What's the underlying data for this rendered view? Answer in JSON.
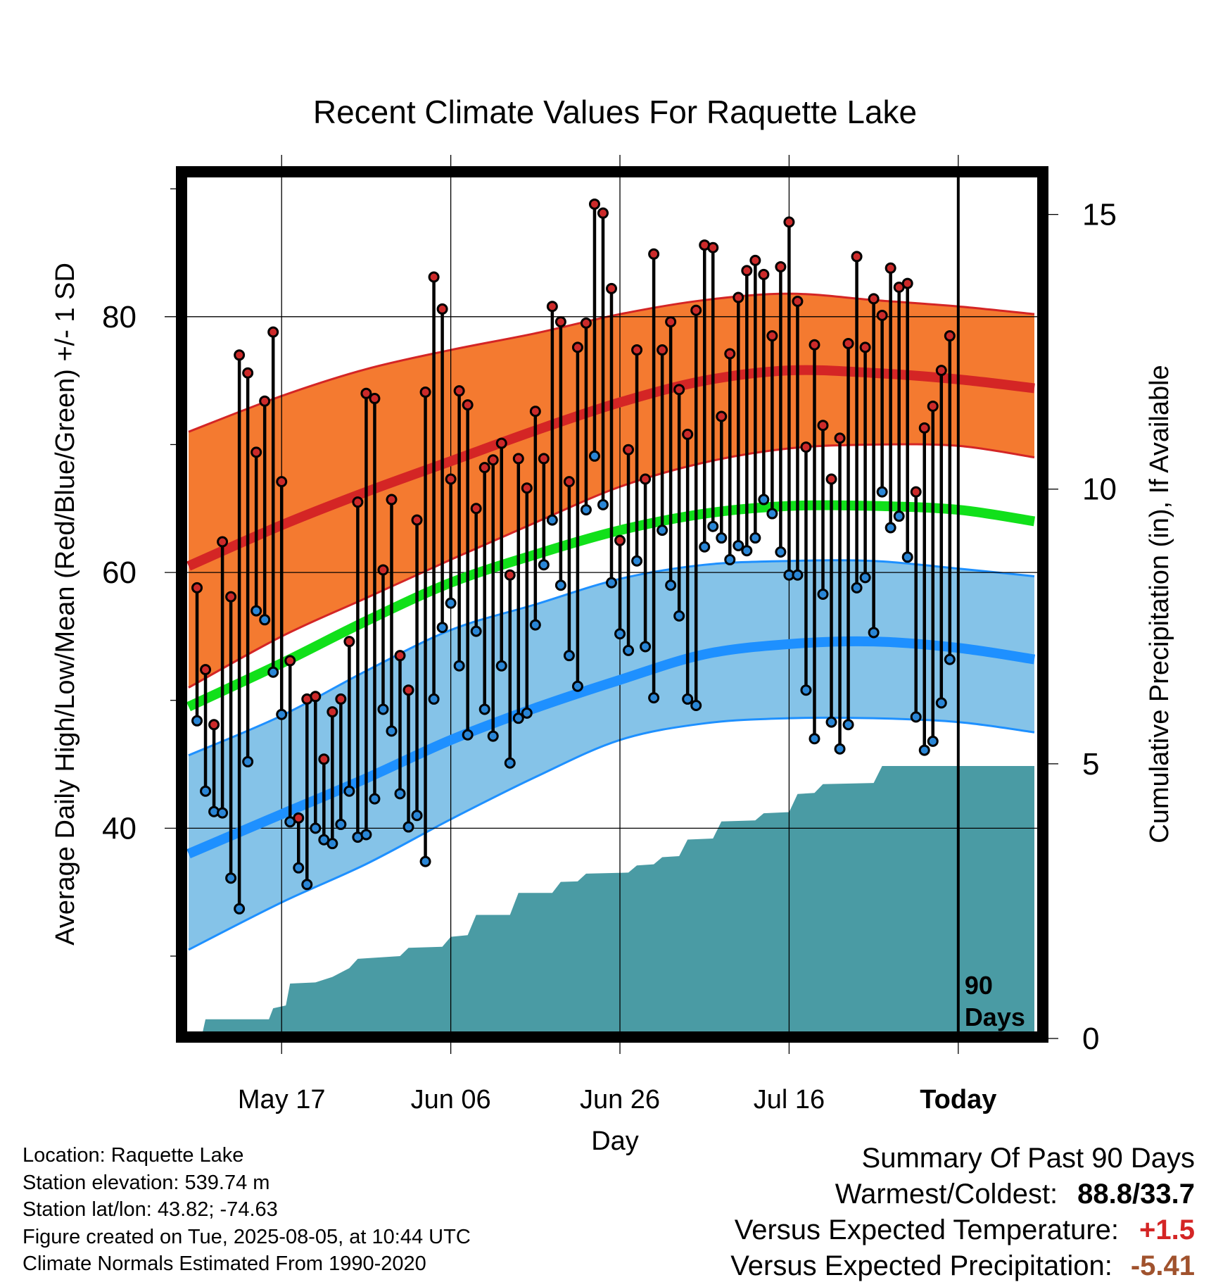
{
  "chart_data": {
    "type": "line",
    "title": "Recent Climate Values For Raquette Lake",
    "xlabel": "Day",
    "ylabel": "Average Daily High/Low/Mean (Red/Blue/Green) +/- 1 SD",
    "y2label": "Cumulative Precipitation (in), If Available",
    "x_tick_labels": [
      "May 17",
      "Jun 06",
      "Jun 26",
      "Jul 16",
      "Today"
    ],
    "x_tick_days": [
      11,
      31,
      51,
      71,
      91
    ],
    "x_range": [
      0,
      100
    ],
    "ylim": [
      24,
      91
    ],
    "y_ticks": [
      40,
      60,
      80
    ],
    "y_minor_ticks": [
      30,
      50,
      70,
      90
    ],
    "y2lim": [
      0,
      15.7
    ],
    "y2_ticks": [
      0,
      5,
      10,
      15
    ],
    "grid": true,
    "today_marker_label": [
      "90",
      "Days"
    ],
    "colors": {
      "high_band": "#f47a30",
      "high_line": "#d42525",
      "low_band": "#85c3e8",
      "low_line": "#1e90ff",
      "mean_line": "#11e01a",
      "precip": "#4a9ba4",
      "high_dot": "#cc2a2a",
      "low_dot": "#2a86d6"
    },
    "normals": {
      "x": [
        0,
        11,
        21,
        31,
        41,
        51,
        61,
        71,
        81,
        91,
        100
      ],
      "high_mean": [
        60.5,
        63.7,
        66.3,
        68.7,
        71.1,
        73.3,
        75.0,
        75.8,
        75.6,
        75.1,
        74.4
      ],
      "high_upper": [
        71.0,
        73.8,
        75.9,
        77.4,
        78.7,
        80.2,
        81.3,
        81.8,
        81.3,
        80.8,
        80.2
      ],
      "high_lower": [
        51.0,
        55.0,
        58.0,
        61.0,
        63.9,
        66.7,
        68.6,
        69.7,
        70.0,
        69.9,
        69.0
      ],
      "mean": [
        49.5,
        52.9,
        56.2,
        59.2,
        61.4,
        63.3,
        64.6,
        65.2,
        65.2,
        64.9,
        64.0
      ],
      "low_mean": [
        38.0,
        41.1,
        43.9,
        46.9,
        49.4,
        51.6,
        53.6,
        54.4,
        54.6,
        54.1,
        53.2
      ],
      "low_upper": [
        45.7,
        48.8,
        52.3,
        55.5,
        57.5,
        59.5,
        60.6,
        60.9,
        60.9,
        60.3,
        59.7
      ],
      "low_lower": [
        30.5,
        34.2,
        37.2,
        40.7,
        44.0,
        46.9,
        48.2,
        48.6,
        48.6,
        48.3,
        47.5
      ]
    },
    "series": [
      {
        "name": "High",
        "values": [
          58.8,
          52.4,
          48.1,
          62.4,
          58.1,
          77.0,
          75.6,
          69.4,
          73.4,
          78.8,
          67.1,
          53.1,
          40.8,
          50.1,
          50.3,
          45.4,
          49.1,
          50.1,
          54.6,
          65.5,
          74.0,
          73.6,
          60.2,
          65.7,
          53.5,
          50.8,
          64.1,
          74.1,
          83.1,
          80.6,
          67.3,
          74.2,
          73.1,
          65.0,
          68.2,
          68.8,
          70.1,
          59.8,
          68.9,
          66.6,
          72.6,
          68.9,
          80.8,
          79.6,
          67.1,
          77.6,
          79.5,
          88.8,
          88.1,
          82.2,
          62.5,
          69.6,
          77.4,
          67.3,
          84.9,
          77.4,
          79.6,
          74.3,
          70.8,
          80.5,
          85.6,
          85.4,
          72.2,
          77.1,
          81.5,
          83.6,
          84.4,
          83.3,
          78.5,
          83.9,
          87.4,
          81.2,
          69.8,
          77.8,
          71.5,
          67.3,
          70.5,
          77.9,
          84.7,
          77.6,
          81.4,
          80.1,
          83.8,
          82.3,
          82.6,
          66.3,
          71.3,
          73.0,
          75.8,
          78.5
        ]
      },
      {
        "name": "Low",
        "values": [
          48.4,
          42.9,
          41.3,
          41.2,
          36.1,
          33.7,
          45.2,
          57.0,
          56.3,
          52.2,
          48.9,
          40.5,
          36.9,
          35.6,
          40.0,
          39.1,
          38.8,
          40.3,
          42.9,
          39.3,
          39.5,
          42.3,
          49.3,
          47.6,
          42.7,
          40.1,
          41.0,
          37.4,
          50.1,
          55.7,
          57.6,
          52.7,
          47.3,
          55.4,
          49.3,
          47.2,
          52.7,
          45.1,
          48.6,
          49.0,
          55.9,
          60.6,
          64.1,
          59.0,
          53.5,
          51.1,
          64.9,
          69.1,
          65.3,
          59.2,
          55.2,
          53.9,
          60.9,
          54.2,
          50.2,
          63.3,
          59.0,
          56.6,
          50.1,
          49.6,
          62.0,
          63.6,
          62.7,
          61.0,
          62.1,
          61.7,
          62.7,
          65.7,
          64.6,
          61.6,
          59.8,
          59.8,
          50.8,
          47.0,
          58.3,
          48.3,
          46.2,
          48.1,
          58.8,
          59.6,
          55.3,
          66.3,
          63.5,
          64.4,
          61.2,
          48.7,
          46.1,
          46.8,
          49.8,
          53.2
        ]
      }
    ],
    "precip": {
      "x": [
        0,
        1.5,
        2,
        9.5,
        10,
        11.5,
        12,
        15,
        17,
        19,
        20,
        25,
        26,
        30,
        31,
        33,
        34,
        38,
        39,
        43,
        44,
        46,
        47,
        52,
        53,
        55,
        56,
        58,
        59,
        62,
        63,
        67,
        68,
        71,
        72,
        74,
        75,
        81,
        82,
        100
      ],
      "values": [
        0,
        0,
        0.35,
        0.35,
        0.55,
        0.6,
        1.0,
        1.02,
        1.12,
        1.28,
        1.45,
        1.5,
        1.65,
        1.67,
        1.85,
        1.88,
        2.25,
        2.25,
        2.65,
        2.65,
        2.85,
        2.86,
        3.0,
        3.02,
        3.15,
        3.17,
        3.3,
        3.32,
        3.62,
        3.64,
        3.95,
        3.97,
        4.1,
        4.12,
        4.45,
        4.47,
        4.63,
        4.65,
        4.96,
        4.96
      ]
    }
  },
  "info": {
    "location": "Location: Raquette Lake",
    "elevation": "Station elevation: 539.74 m",
    "latlon": "Station lat/lon: 43.82; -74.63",
    "created": "Figure created on Tue, 2025-08-05, at 10:44 UTC",
    "normals": "Climate Normals Estimated From 1990-2020"
  },
  "summary": {
    "title": "Summary Of Past 90 Days",
    "warm_cold_label": "Warmest/Coldest:",
    "warm_cold_value": "88.8/33.7",
    "temp_label": "Versus Expected Temperature:",
    "temp_value": "+1.5",
    "temp_color": "#d42525",
    "precip_label": "Versus Expected Precipitation:",
    "precip_value": "-5.41",
    "precip_color": "#a0522d"
  }
}
